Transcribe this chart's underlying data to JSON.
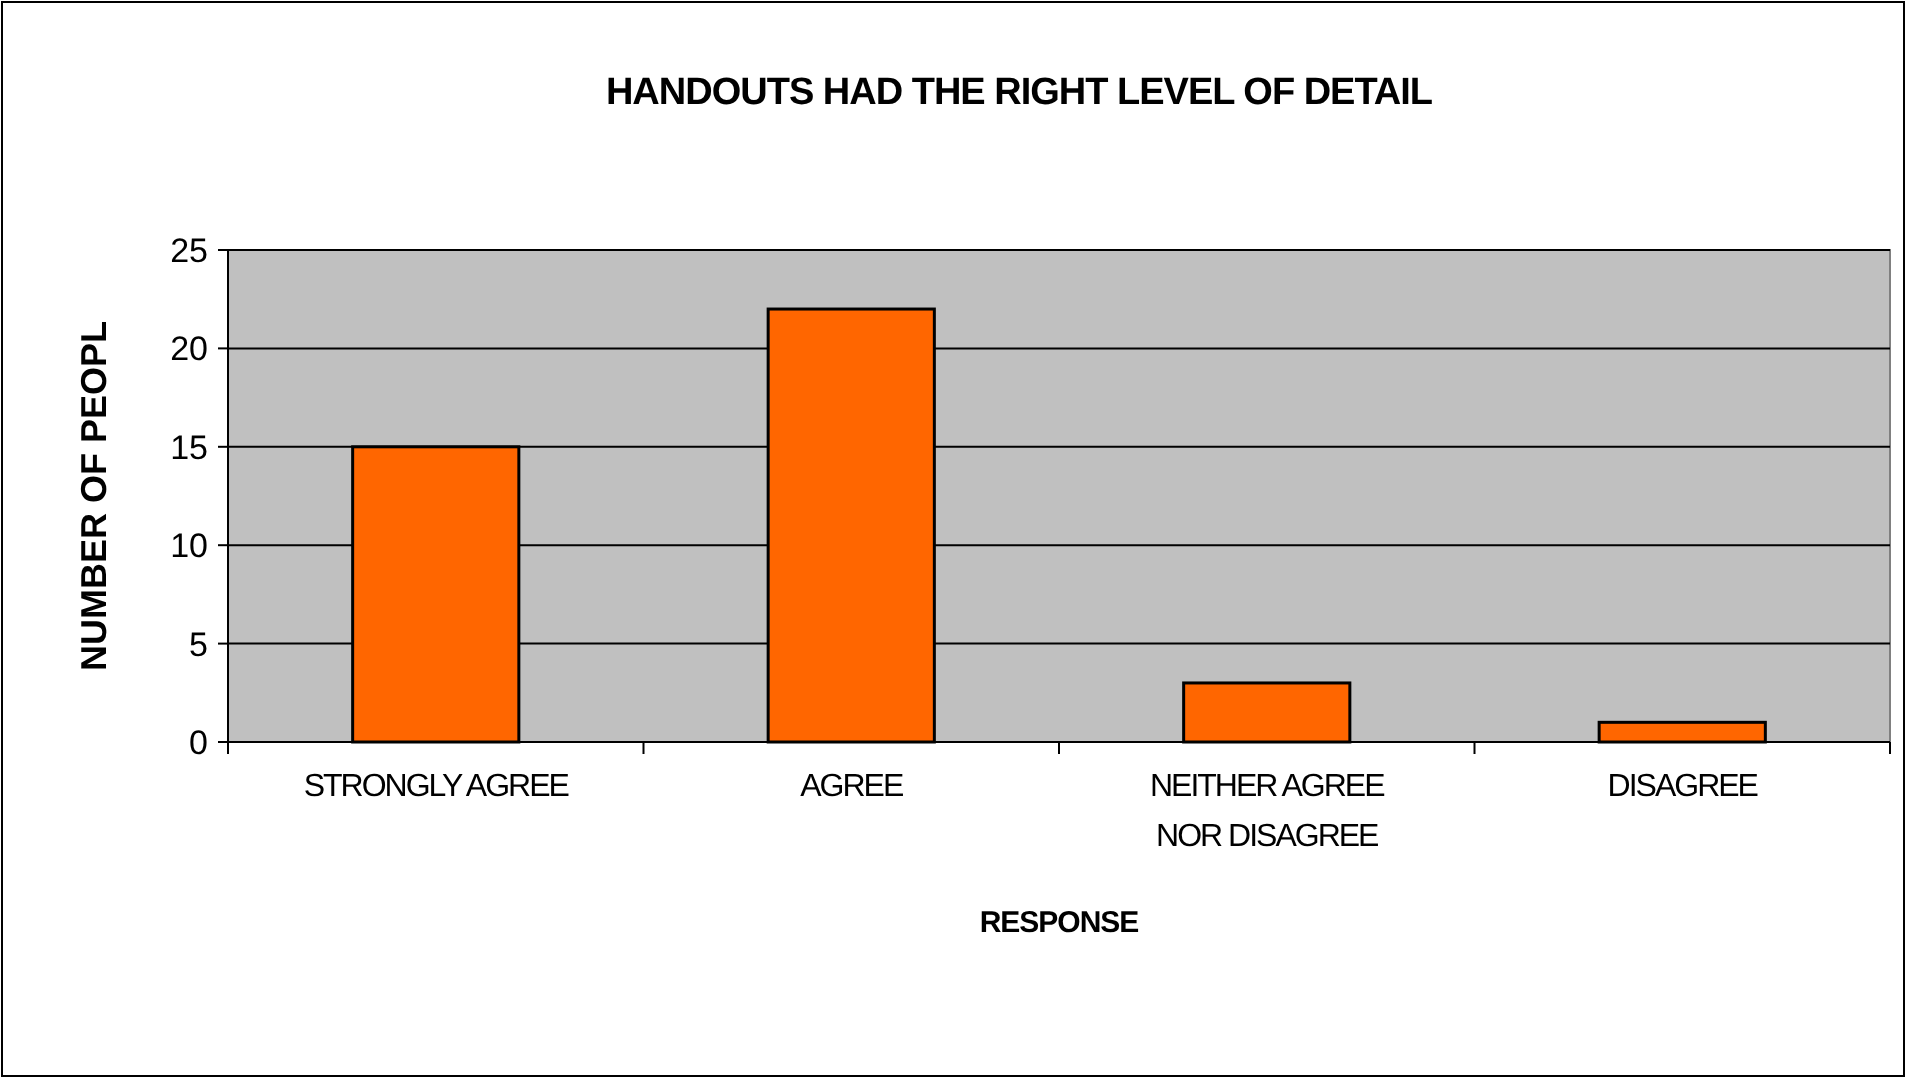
{
  "chart_data": {
    "type": "bar",
    "title": "HANDOUTS HAD THE RIGHT LEVEL OF DETAIL",
    "xlabel": "RESPONSE",
    "ylabel": "NUMBER OF PEOPL",
    "categories": [
      "STRONGLY AGREE",
      "AGREE",
      "NEITHER AGREE NOR DISAGREE",
      "DISAGREE"
    ],
    "values": [
      15,
      22,
      3,
      1
    ],
    "color": "#ff6600",
    "ylim": [
      0,
      25
    ],
    "yticks": [
      0,
      5,
      10,
      15,
      20,
      25
    ],
    "grid": "y"
  }
}
